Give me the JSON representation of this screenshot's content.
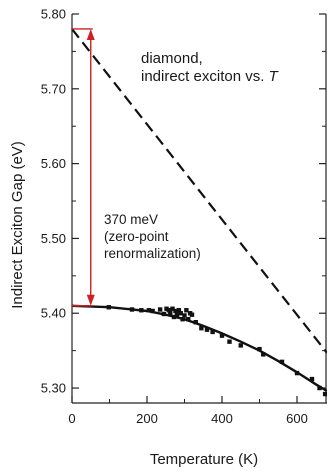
{
  "chart_data": {
    "type": "line",
    "title": "diamond,",
    "subtitle_prefix": "indirect exciton vs. ",
    "subtitle_var": "T",
    "xlabel": "Temperature (K)",
    "ylabel": "Indirect Exciton Gap (eV)",
    "xlim": [
      0,
      680
    ],
    "ylim": [
      5.28,
      5.8
    ],
    "x_ticks": [
      0,
      200,
      400,
      600
    ],
    "x_tick_labels": [
      "0",
      "200",
      "400",
      "600"
    ],
    "y_ticks": [
      5.3,
      5.4,
      5.5,
      5.6,
      5.7,
      5.8
    ],
    "y_tick_labels": [
      "5.30",
      "5.40",
      "5.50",
      "5.60",
      "5.70",
      "5.80"
    ],
    "grid": false,
    "annotation": {
      "line1": "370 meV",
      "line2": "(zero-point",
      "line3": "renormalization)",
      "x": 50,
      "y_top": 5.78,
      "y_bottom": 5.41,
      "color": "#cc2222"
    },
    "series": [
      {
        "style": "solid-fit",
        "x": [
          0,
          100,
          200,
          250,
          300,
          350,
          400,
          450,
          500,
          550,
          600,
          650,
          680
        ],
        "y": [
          5.41,
          5.408,
          5.403,
          5.398,
          5.392,
          5.383,
          5.373,
          5.362,
          5.35,
          5.336,
          5.321,
          5.305,
          5.296
        ]
      },
      {
        "style": "dashed-linear",
        "x": [
          0,
          680
        ],
        "y": [
          5.78,
          5.347
        ]
      },
      {
        "style": "markers",
        "x": [
          98,
          160,
          185,
          205,
          215,
          235,
          245,
          252,
          258,
          262,
          268,
          272,
          276,
          280,
          285,
          290,
          295,
          300,
          305,
          310,
          315,
          320,
          330,
          345,
          360,
          375,
          400,
          420,
          450,
          500,
          510,
          560,
          600,
          640,
          660,
          675
        ],
        "y": [
          5.408,
          5.405,
          5.404,
          5.404,
          5.403,
          5.405,
          5.399,
          5.406,
          5.404,
          5.4,
          5.406,
          5.395,
          5.403,
          5.398,
          5.404,
          5.4,
          5.392,
          5.397,
          5.404,
          5.392,
          5.4,
          5.398,
          5.388,
          5.38,
          5.378,
          5.375,
          5.37,
          5.362,
          5.357,
          5.352,
          5.345,
          5.335,
          5.32,
          5.312,
          5.3,
          5.292
        ]
      }
    ]
  }
}
